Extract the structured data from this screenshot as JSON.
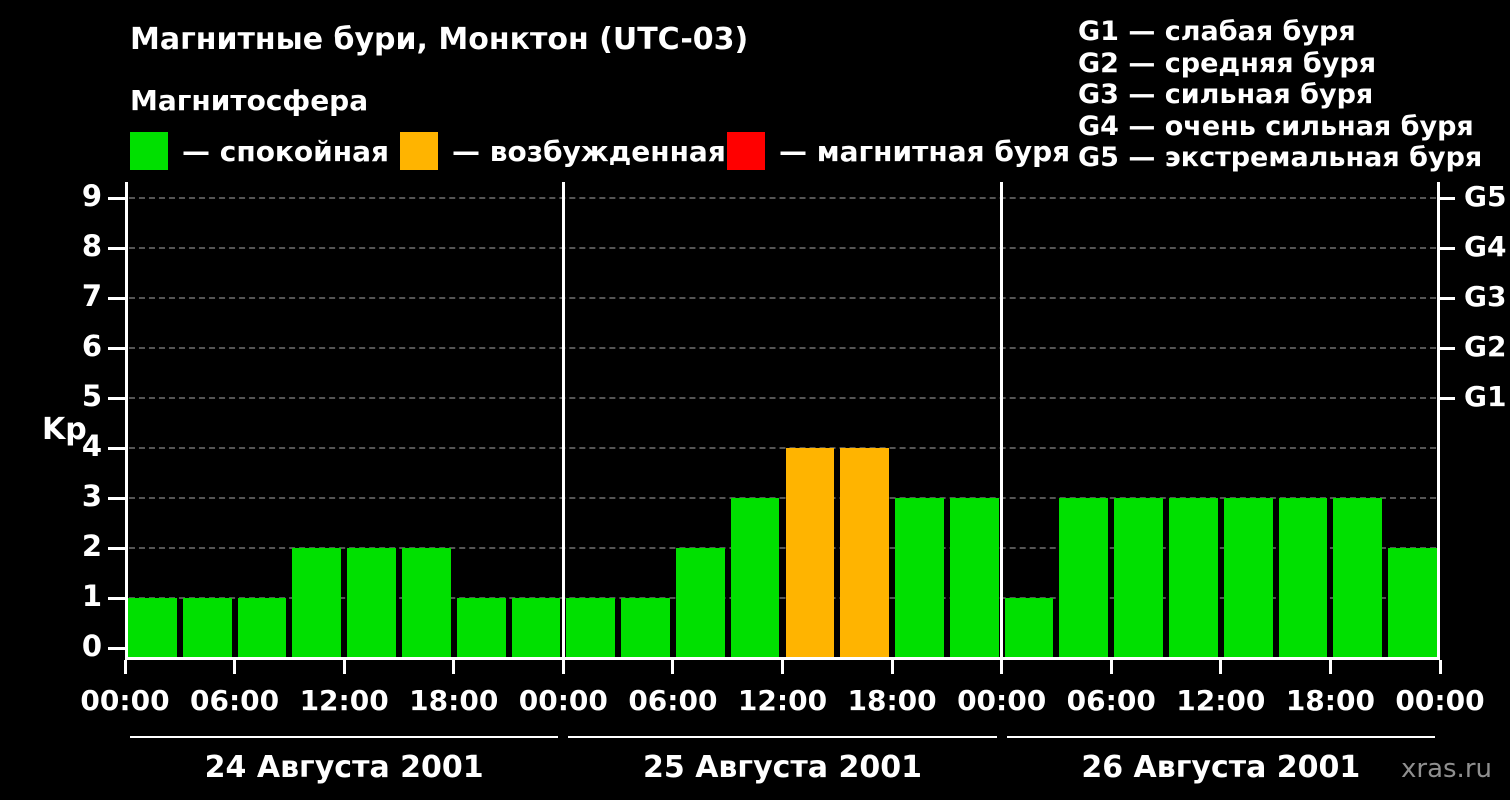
{
  "header": {
    "title": "Магнитные бури, Монктон (UTC-03)",
    "subtitle": "Магнитосфера"
  },
  "legend": [
    {
      "label": "— спокойная",
      "color": "#00e000"
    },
    {
      "label": "— возбужденная",
      "color": "#ffb400"
    },
    {
      "label": "— магнитная буря",
      "color": "#ff0000"
    }
  ],
  "g_scale": [
    "G1 — слабая буря",
    "G2 — средняя буря",
    "G3 — сильная буря",
    "G4 — очень сильная буря",
    "G5 — экстремальная буря"
  ],
  "watermark": "xras.ru",
  "chart_data": {
    "type": "bar",
    "title": "Магнитные бури, Монктон (UTC-03)",
    "ylabel": "Kp",
    "ylim": [
      0,
      9
    ],
    "yticks": [
      0,
      1,
      2,
      3,
      4,
      5,
      6,
      7,
      8,
      9
    ],
    "grid": "dashed horizontal at each Kp level",
    "bar_interval_hours": 3,
    "x_tick_hours": [
      0,
      6,
      12,
      18
    ],
    "x_tick_labels": [
      "00:00",
      "06:00",
      "12:00",
      "18:00"
    ],
    "x_final_label": "00:00",
    "right_axis": [
      {
        "label": "G1",
        "kp": 5
      },
      {
        "label": "G2",
        "kp": 6
      },
      {
        "label": "G3",
        "kp": 7
      },
      {
        "label": "G4",
        "kp": 8
      },
      {
        "label": "G5",
        "kp": 9
      }
    ],
    "colors": {
      "quiet": "#00e000",
      "excited": "#ffb400",
      "storm": "#ff0000"
    },
    "color_thresholds": {
      "quiet_max": 3,
      "excited_max": 4
    },
    "days": [
      {
        "date": "24 Августа 2001",
        "values": [
          1,
          1,
          1,
          2,
          2,
          2,
          1,
          1
        ]
      },
      {
        "date": "25 Августа 2001",
        "values": [
          1,
          1,
          2,
          3,
          4,
          4,
          3,
          3
        ]
      },
      {
        "date": "26 Августа 2001",
        "values": [
          1,
          3,
          3,
          3,
          3,
          3,
          3,
          2
        ]
      }
    ]
  }
}
